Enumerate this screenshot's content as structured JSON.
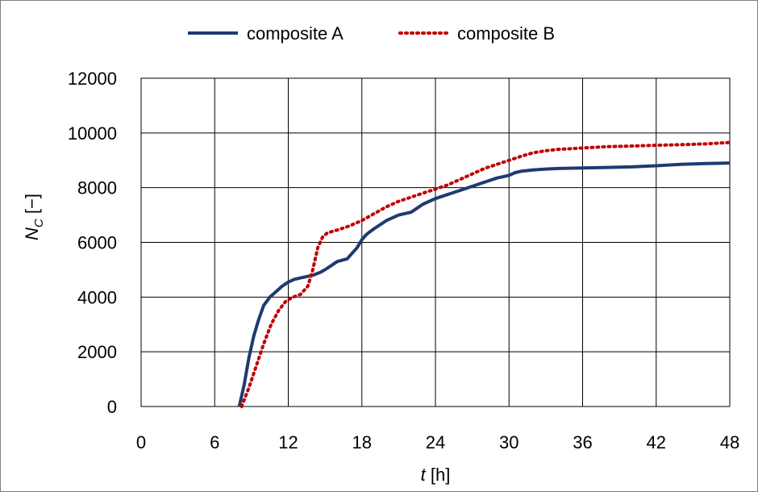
{
  "chart_data": {
    "type": "line",
    "title": "",
    "xlabel": {
      "var": "t",
      "unit": " [h]"
    },
    "ylabel": {
      "var": "N",
      "sub": "C",
      "unit": " [−]"
    },
    "xlim": [
      0,
      48
    ],
    "ylim": [
      0,
      12000
    ],
    "x_ticks": [
      0,
      6,
      12,
      18,
      24,
      30,
      36,
      42,
      48
    ],
    "y_ticks": [
      0,
      2000,
      4000,
      6000,
      8000,
      10000,
      12000
    ],
    "grid": true,
    "legend_position": "top",
    "series": [
      {
        "name": "composite A",
        "color": "#1f3a70",
        "style": "solid",
        "x": [
          8.0,
          8.4,
          8.8,
          9.2,
          9.6,
          10.0,
          10.5,
          11.0,
          11.5,
          12.0,
          12.5,
          13.0,
          14.0,
          14.6,
          15.0,
          15.5,
          16.0,
          16.8,
          17.2,
          17.6,
          18.0,
          18.4,
          19.0,
          20.0,
          21.0,
          22.0,
          23.0,
          24.0,
          25.0,
          26.0,
          27.0,
          28.0,
          29.0,
          30.0,
          30.5,
          31.0,
          32.0,
          33.0,
          34.0,
          36.0,
          38.0,
          40.0,
          42.0,
          44.0,
          46.0,
          48.0
        ],
        "y": [
          0,
          800,
          1800,
          2600,
          3200,
          3700,
          4000,
          4200,
          4400,
          4550,
          4650,
          4700,
          4800,
          4900,
          5000,
          5150,
          5300,
          5400,
          5600,
          5800,
          6100,
          6300,
          6500,
          6800,
          7000,
          7100,
          7400,
          7600,
          7750,
          7900,
          8050,
          8200,
          8350,
          8450,
          8550,
          8600,
          8650,
          8680,
          8700,
          8720,
          8740,
          8760,
          8800,
          8850,
          8880,
          8900
        ]
      },
      {
        "name": "composite B",
        "color": "#c00000",
        "style": "dotted",
        "x": [
          8.2,
          8.8,
          9.4,
          10.0,
          10.6,
          11.2,
          11.8,
          12.4,
          13.0,
          13.6,
          14.0,
          14.4,
          14.8,
          15.2,
          16.0,
          17.0,
          18.0,
          19.0,
          20.0,
          21.0,
          22.0,
          23.0,
          24.0,
          25.0,
          26.0,
          27.0,
          28.0,
          29.0,
          30.0,
          31.0,
          32.0,
          33.0,
          34.0,
          36.0,
          38.0,
          40.0,
          42.0,
          44.0,
          46.0,
          48.0
        ],
        "y": [
          0,
          700,
          1500,
          2300,
          3000,
          3500,
          3850,
          4000,
          4100,
          4400,
          5000,
          5800,
          6200,
          6350,
          6450,
          6600,
          6800,
          7050,
          7300,
          7500,
          7650,
          7800,
          7950,
          8100,
          8300,
          8500,
          8700,
          8850,
          9000,
          9150,
          9280,
          9350,
          9400,
          9450,
          9500,
          9520,
          9550,
          9570,
          9600,
          9650
        ]
      }
    ]
  }
}
